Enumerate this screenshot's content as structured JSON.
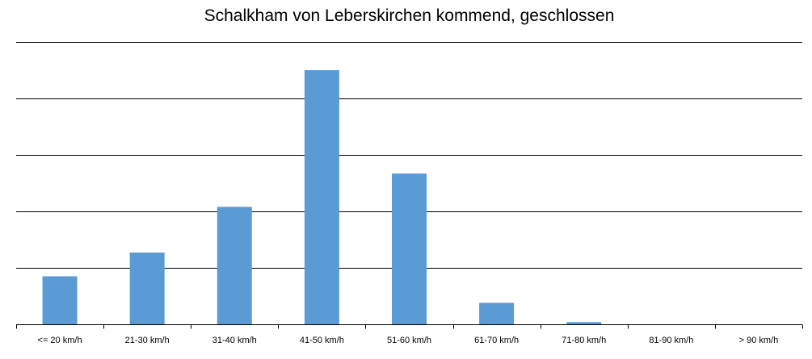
{
  "chart_data": {
    "type": "bar",
    "title": "Schalkham von Leberskirchen kommend, geschlossen",
    "xlabel": "",
    "ylabel": "",
    "categories": [
      "<= 20 km/h",
      "21-30 km/h",
      "31-40 km/h",
      "41-50 km/h",
      "51-60 km/h",
      "61-70 km/h",
      "71-80 km/h",
      "81-90 km/h",
      "> 90 km/h"
    ],
    "values": [
      0.85,
      1.27,
      2.08,
      4.5,
      2.67,
      0.38,
      0.04,
      0,
      0
    ],
    "ylim": [
      0,
      5
    ],
    "grid": true,
    "legend": "none",
    "y_ticks_labeled": false,
    "colors": {
      "bar": "#5B9BD5",
      "grid": "#000000",
      "axis": "#000000"
    }
  }
}
